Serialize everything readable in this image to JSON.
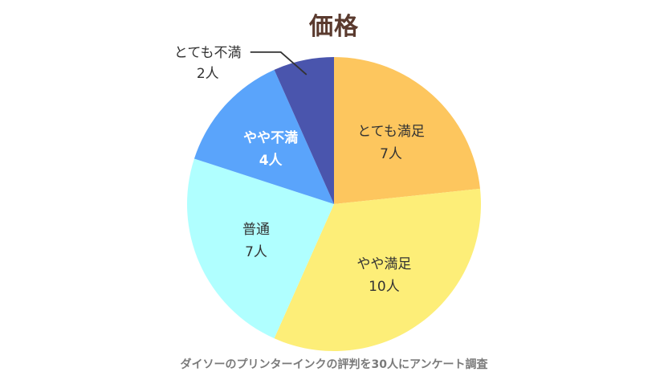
{
  "chart_data": {
    "type": "pie",
    "title": "価格",
    "caption": "ダイソーのプリンターインクの評判を30人にアンケート調査",
    "unit": "人",
    "categories": [
      "とても満足",
      "やや満足",
      "普通",
      "やや不満",
      "とても不満"
    ],
    "values": [
      7,
      10,
      7,
      4,
      2
    ],
    "colors": [
      "#fdc65e",
      "#fdee78",
      "#b0ffff",
      "#5aa4fb",
      "#4a55ad"
    ],
    "label_colors": [
      "#333333",
      "#333333",
      "#333333",
      "#ffffff",
      "#333333"
    ],
    "value_labels": [
      "7人",
      "10人",
      "7人",
      "4人",
      "2人"
    ],
    "start": "12 o'clock",
    "direction": "clockwise",
    "legend": "none"
  }
}
